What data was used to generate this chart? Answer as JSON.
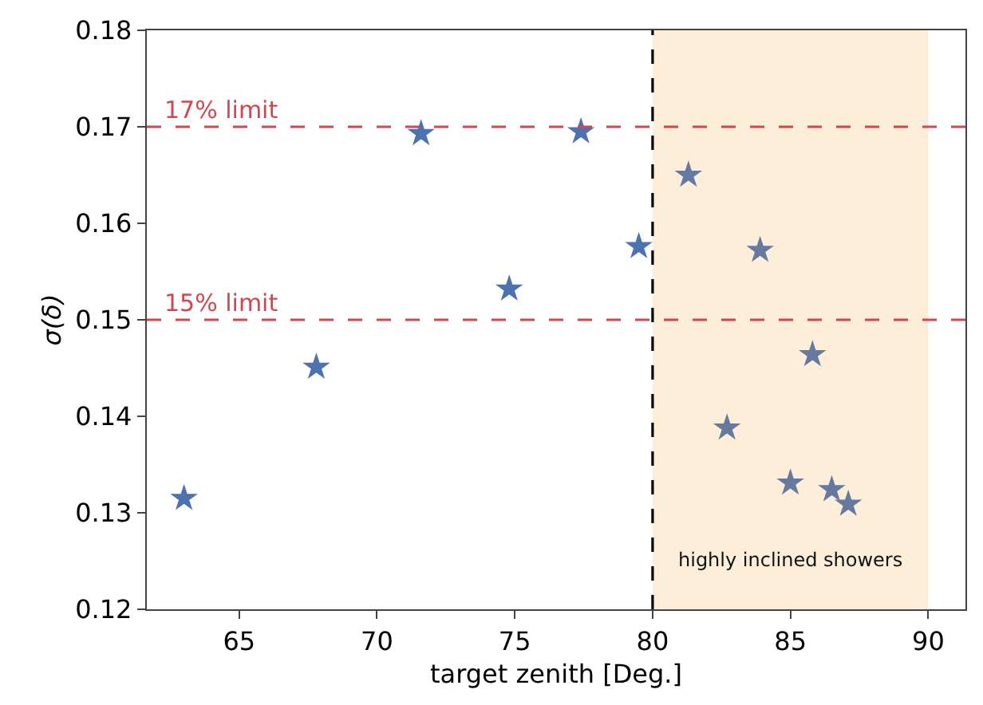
{
  "chart_data": {
    "type": "scatter",
    "xlabel": "target zenith [Deg.]",
    "ylabel": "σ(δ)",
    "x": [
      63.0,
      67.8,
      71.6,
      74.8,
      77.4,
      79.5,
      81.3,
      83.9,
      85.8,
      82.7,
      85.0,
      86.5,
      87.1
    ],
    "series": [
      {
        "colors": [
          "#4c72b0",
          "#4c72b0",
          "#4c72b0",
          "#4c72b0",
          "#4c72b0",
          "#4c72b0",
          "#66799f",
          "#66799f",
          "#66799f",
          "#66799f",
          "#66799f",
          "#66799f",
          "#66799f"
        ],
        "values": [
          0.1315,
          0.1451,
          0.1693,
          0.1532,
          0.1695,
          0.1576,
          0.165,
          0.1572,
          0.1464,
          0.1388,
          0.1331,
          0.1324,
          0.1309
        ]
      }
    ],
    "marker": "star",
    "xlim": [
      61.65,
      91.35
    ],
    "ylim": [
      0.12,
      0.18
    ],
    "xticks": [
      65,
      70,
      75,
      80,
      85,
      90
    ],
    "yticks": [
      0.12,
      0.13,
      0.14,
      0.15,
      0.16,
      0.17,
      0.18
    ],
    "ref_lines": [
      {
        "axis": "y",
        "value": 0.17,
        "label": "17% limit",
        "color": "#d0474f",
        "line_style": "dashed"
      },
      {
        "axis": "y",
        "value": 0.15,
        "label": "15% limit",
        "color": "#d0474f",
        "line_style": "dashed"
      },
      {
        "axis": "x",
        "value": 80,
        "label": null,
        "color": "#000000",
        "line_style": "dashed"
      }
    ],
    "bands": [
      {
        "axis": "x",
        "from": 80,
        "to": 90,
        "label": "highly inclined showers",
        "color": "#fdeed9"
      }
    ],
    "grid": false
  }
}
